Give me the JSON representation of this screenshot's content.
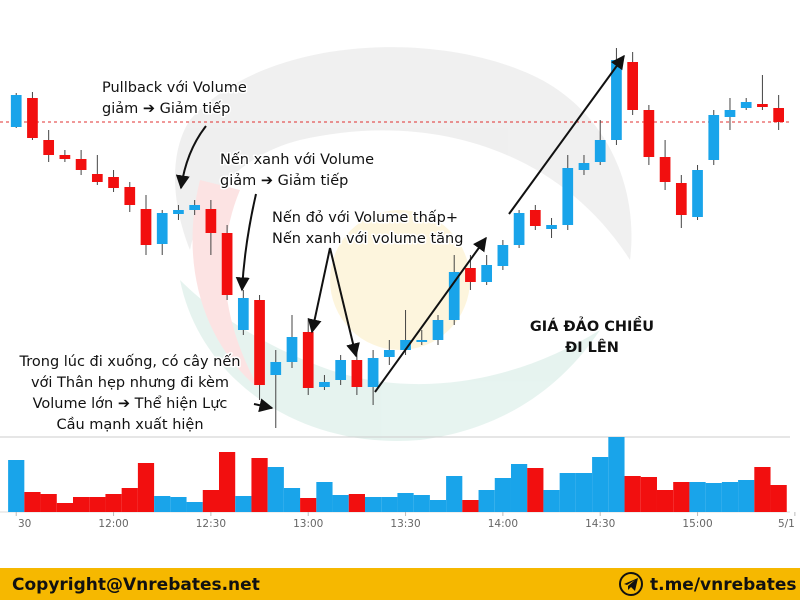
{
  "chart_data": {
    "type": "candlestick",
    "up_color": "#19a4ea",
    "down_color": "#f20f0f",
    "xlim": [
      -1,
      47.7
    ],
    "ylim": [
      0,
      400
    ],
    "volume_ylim": [
      0,
      80
    ],
    "xticks": [
      {
        "value": 0,
        "label": "30"
      },
      {
        "value": 6,
        "label": "12:00"
      },
      {
        "value": 12,
        "label": "12:30"
      },
      {
        "value": 18,
        "label": "13:00"
      },
      {
        "value": 24,
        "label": "13:30"
      },
      {
        "value": 30,
        "label": "14:00"
      },
      {
        "value": 36,
        "label": "14:30"
      },
      {
        "value": 42,
        "label": "15:00"
      },
      {
        "value": 48,
        "label": "5/1"
      }
    ],
    "open": [
      313,
      342,
      300,
      285,
      281,
      266,
      263,
      253,
      231,
      196,
      226,
      230,
      231,
      207,
      110,
      140,
      65,
      78,
      108,
      53,
      60,
      80,
      53,
      83,
      90,
      98,
      100,
      120,
      172,
      158,
      174,
      195,
      230,
      211,
      215,
      270,
      278,
      300,
      378,
      330,
      283,
      257,
      223,
      280,
      323,
      332,
      336,
      332
    ],
    "high": [
      347,
      348,
      310,
      290,
      290,
      285,
      270,
      258,
      245,
      230,
      235,
      240,
      240,
      215,
      150,
      145,
      90,
      125,
      122,
      65,
      85,
      90,
      90,
      100,
      130,
      110,
      125,
      185,
      185,
      185,
      200,
      230,
      235,
      222,
      285,
      285,
      320,
      392,
      388,
      335,
      300,
      265,
      275,
      330,
      342,
      342,
      365,
      345
    ],
    "low": [
      312,
      300,
      278,
      278,
      265,
      255,
      248,
      228,
      185,
      185,
      220,
      225,
      185,
      140,
      105,
      40,
      12,
      72,
      45,
      50,
      55,
      45,
      35,
      75,
      85,
      95,
      95,
      115,
      150,
      155,
      170,
      192,
      210,
      202,
      210,
      265,
      275,
      295,
      325,
      275,
      250,
      212,
      220,
      275,
      310,
      330,
      330,
      310
    ],
    "close": [
      345,
      302,
      285,
      281,
      270,
      258,
      252,
      235,
      195,
      227,
      230,
      235,
      207,
      145,
      142,
      55,
      78,
      103,
      52,
      58,
      80,
      53,
      82,
      90,
      100,
      100,
      120,
      168,
      158,
      175,
      195,
      227,
      214,
      215,
      272,
      277,
      300,
      380,
      330,
      283,
      258,
      225,
      270,
      325,
      330,
      338,
      333,
      318
    ],
    "volume": [
      52,
      20,
      18,
      9,
      15,
      15,
      18,
      24,
      49,
      16,
      15,
      10,
      22,
      60,
      16,
      54,
      45,
      24,
      14,
      30,
      17,
      18,
      15,
      15,
      19,
      17,
      12,
      36,
      12,
      22,
      34,
      48,
      44,
      22,
      39,
      39,
      55,
      75,
      36,
      35,
      22,
      30,
      30,
      29,
      30,
      32,
      45,
      27
    ],
    "ref_line": 318,
    "annotations": [
      {
        "lines": [
          "Pullback với Volume",
          "giảm ➔ Giảm tiếp"
        ]
      },
      {
        "lines": [
          "Nến xanh với Volume",
          "giảm ➔ Giảm tiếp"
        ]
      },
      {
        "lines": [
          "Nến đỏ với Volume thấp+",
          "Nến xanh với volume tăng"
        ]
      },
      {
        "lines": [
          "Trong lúc đi xuống, có cây nến",
          "với Thân hẹp nhưng đi kèm",
          "Volume lớn ➔ Thể hiện Lực",
          "Cầu mạnh xuất hiện"
        ]
      },
      {
        "lines": [
          "GIÁ ĐẢO CHIỀU",
          "ĐI LÊN"
        ]
      }
    ]
  },
  "footer": {
    "copyright": "Copyright@Vnrebates.net",
    "contact": "t.me/vnrebates"
  }
}
